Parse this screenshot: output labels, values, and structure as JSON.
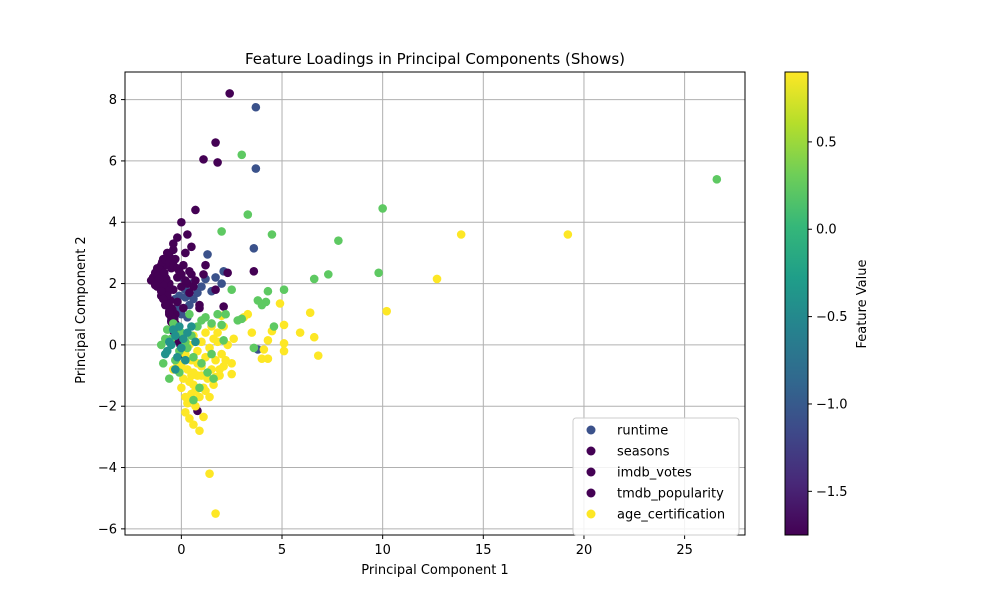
{
  "chart_data": {
    "type": "scatter",
    "title": "Feature Loadings in Principal Components (Shows)",
    "xlabel": "Principal Component 1",
    "ylabel": "Principal Component 2",
    "xlim": [
      -2.8,
      28
    ],
    "ylim": [
      -6.2,
      8.9
    ],
    "xticks": [
      0,
      5,
      10,
      15,
      20,
      25
    ],
    "yticks": [
      -6,
      -4,
      -2,
      0,
      2,
      4,
      6,
      8
    ],
    "grid": true,
    "legend_position": "lower-right",
    "colorbar": {
      "label": "Feature Value",
      "range": [
        -1.75,
        0.9
      ],
      "ticks": [
        -1.5,
        -1.0,
        -0.5,
        0.0,
        0.5
      ],
      "tick_labels": [
        "−1.5",
        "−1.0",
        "−0.5",
        "0.0",
        "0.5"
      ],
      "colormap": "viridis"
    },
    "colormap_stops": [
      "#440154",
      "#482878",
      "#3e4989",
      "#31688e",
      "#26828e",
      "#1f9e89",
      "#35b779",
      "#6ece58",
      "#b5de2b",
      "#fde725"
    ],
    "series": [
      {
        "name": "runtime",
        "legend_color": "#3b528b",
        "points": [
          [
            3.7,
            7.75
          ],
          [
            3.7,
            5.75
          ],
          [
            1.3,
            2.95
          ],
          [
            3.6,
            3.15
          ],
          [
            1.7,
            2.2
          ],
          [
            1.2,
            2.15
          ],
          [
            2.1,
            2.4
          ],
          [
            0.5,
            2.0
          ],
          [
            0.2,
            1.8
          ],
          [
            -0.1,
            1.6
          ],
          [
            -0.3,
            1.5
          ],
          [
            0.8,
            1.7
          ],
          [
            0.4,
            1.3
          ],
          [
            -0.2,
            1.2
          ],
          [
            0.0,
            1.0
          ],
          [
            0.3,
            0.9
          ],
          [
            -0.5,
            0.8
          ],
          [
            0.6,
            1.5
          ],
          [
            1.0,
            1.9
          ],
          [
            2.0,
            2.0
          ],
          [
            3.8,
            -0.15
          ],
          [
            0.0,
            2.2
          ],
          [
            -0.6,
            1.9
          ],
          [
            0.2,
            1.55
          ],
          [
            1.5,
            1.75
          ]
        ]
      },
      {
        "name": "seasons",
        "legend_color": "#440154",
        "points": [
          [
            2.4,
            8.2
          ],
          [
            1.7,
            6.6
          ],
          [
            1.8,
            5.95
          ],
          [
            1.1,
            6.05
          ],
          [
            0.7,
            4.4
          ],
          [
            0.0,
            4.0
          ],
          [
            0.3,
            3.6
          ],
          [
            -0.2,
            3.5
          ],
          [
            0.5,
            3.2
          ],
          [
            1.2,
            2.6
          ],
          [
            3.6,
            2.4
          ],
          [
            2.3,
            2.35
          ],
          [
            0.5,
            2.3
          ],
          [
            1.7,
            1.8
          ],
          [
            2.1,
            1.25
          ],
          [
            0.8,
            -2.15
          ],
          [
            -0.4,
            3.3
          ],
          [
            -0.7,
            3.0
          ],
          [
            0.2,
            3.0
          ],
          [
            -0.9,
            2.8
          ],
          [
            -1.0,
            2.6
          ],
          [
            -1.2,
            2.5
          ],
          [
            -1.3,
            2.35
          ],
          [
            -1.4,
            2.2
          ],
          [
            -1.5,
            2.1
          ],
          [
            -1.1,
            2.0
          ],
          [
            -0.8,
            2.2
          ],
          [
            -0.5,
            2.5
          ],
          [
            -0.3,
            2.8
          ],
          [
            0.1,
            2.6
          ],
          [
            0.4,
            2.4
          ],
          [
            -0.6,
            2.0
          ],
          [
            -0.9,
            1.8
          ],
          [
            -1.0,
            1.6
          ],
          [
            -0.7,
            1.5
          ],
          [
            -0.4,
            1.8
          ],
          [
            0.0,
            1.9
          ],
          [
            -0.2,
            2.2
          ],
          [
            -1.2,
            1.9
          ],
          [
            -1.3,
            2.0
          ],
          [
            -0.8,
            2.6
          ],
          [
            -0.6,
            2.9
          ],
          [
            -0.4,
            3.1
          ],
          [
            -1.0,
            2.3
          ],
          [
            -0.2,
            1.4
          ],
          [
            -0.5,
            1.2
          ],
          [
            -0.7,
            1.3
          ],
          [
            -0.3,
            1.0
          ],
          [
            -0.4,
            0.6
          ],
          [
            -0.2,
            0.4
          ],
          [
            -0.6,
            1.0
          ],
          [
            0.3,
            2.0
          ],
          [
            -0.1,
            2.4
          ],
          [
            0.6,
            1.9
          ],
          [
            0.9,
            1.3
          ],
          [
            0.1,
            1.2
          ]
        ]
      },
      {
        "name": "imdb_votes",
        "legend_color": "#440154",
        "points": [
          [
            -0.95,
            2.7
          ],
          [
            -1.05,
            2.45
          ],
          [
            -1.15,
            2.25
          ],
          [
            -1.25,
            2.05
          ],
          [
            -0.85,
            2.35
          ],
          [
            -0.75,
            2.15
          ],
          [
            -0.65,
            1.75
          ],
          [
            -0.55,
            1.45
          ],
          [
            -0.45,
            1.15
          ],
          [
            -0.35,
            0.85
          ],
          [
            -0.25,
            0.55
          ],
          [
            -0.15,
            0.25
          ],
          [
            -0.05,
            0.0
          ],
          [
            0.05,
            -0.3
          ],
          [
            -0.5,
            0.9
          ],
          [
            -0.6,
            1.1
          ],
          [
            -0.7,
            1.6
          ],
          [
            -0.3,
            0.7
          ],
          [
            -0.2,
            0.3
          ],
          [
            -0.1,
            0.1
          ],
          [
            -0.9,
            1.95
          ],
          [
            -1.0,
            1.75
          ]
        ]
      },
      {
        "name": "tmdb_popularity",
        "legend_color": "#440154",
        "points": [
          [
            -0.8,
            2.8
          ],
          [
            -0.6,
            2.7
          ],
          [
            -0.4,
            2.6
          ],
          [
            -0.2,
            2.5
          ],
          [
            0.0,
            2.3
          ],
          [
            0.2,
            2.1
          ],
          [
            -1.1,
            2.15
          ],
          [
            -1.3,
            1.95
          ],
          [
            -0.9,
            1.5
          ],
          [
            -0.8,
            1.3
          ],
          [
            -0.6,
            1.05
          ],
          [
            -0.5,
            0.75
          ],
          [
            -0.4,
            0.45
          ],
          [
            -0.3,
            0.15
          ],
          [
            0.4,
            1.7
          ],
          [
            0.7,
            2.1
          ],
          [
            0.9,
            1.2
          ],
          [
            1.1,
            2.3
          ]
        ]
      },
      {
        "name": "age_certification",
        "legend_color": "#fde725",
        "points": [
          [
            13.9,
            3.6
          ],
          [
            19.2,
            3.6
          ],
          [
            12.7,
            2.15
          ],
          [
            10.2,
            1.1
          ],
          [
            6.4,
            1.05
          ],
          [
            6.6,
            0.25
          ],
          [
            6.8,
            -0.35
          ],
          [
            5.9,
            0.4
          ],
          [
            4.9,
            1.35
          ],
          [
            5.1,
            0.65
          ],
          [
            5.1,
            0.05
          ],
          [
            5.1,
            -0.2
          ],
          [
            4.5,
            0.45
          ],
          [
            4.3,
            0.15
          ],
          [
            4.1,
            -0.15
          ],
          [
            4.3,
            -0.45
          ],
          [
            4.0,
            -0.45
          ],
          [
            3.5,
            0.4
          ],
          [
            3.3,
            1.0
          ],
          [
            3.1,
            0.9
          ],
          [
            2.6,
            0.2
          ],
          [
            2.5,
            -0.6
          ],
          [
            2.5,
            -0.95
          ],
          [
            2.0,
            0.95
          ],
          [
            2.1,
            0.6
          ],
          [
            1.8,
            0.4
          ],
          [
            1.6,
            0.2
          ],
          [
            1.4,
            -0.1
          ],
          [
            1.2,
            -0.4
          ],
          [
            1.0,
            -0.7
          ],
          [
            0.8,
            -1.0
          ],
          [
            0.6,
            -1.3
          ],
          [
            0.5,
            -1.6
          ],
          [
            0.3,
            -1.9
          ],
          [
            0.2,
            -2.2
          ],
          [
            0.4,
            -2.4
          ],
          [
            0.6,
            -2.6
          ],
          [
            0.9,
            -2.8
          ],
          [
            1.1,
            -2.35
          ],
          [
            1.4,
            -1.7
          ],
          [
            1.6,
            -1.3
          ],
          [
            1.9,
            -1.0
          ],
          [
            2.1,
            -0.7
          ],
          [
            1.7,
            -0.5
          ],
          [
            1.5,
            -0.8
          ],
          [
            1.3,
            -1.1
          ],
          [
            1.1,
            -1.4
          ],
          [
            0.9,
            -1.7
          ],
          [
            0.7,
            -2.0
          ],
          [
            0.5,
            -0.5
          ],
          [
            0.3,
            -0.8
          ],
          [
            0.1,
            -1.1
          ],
          [
            0.0,
            -0.7
          ],
          [
            -0.2,
            -0.6
          ],
          [
            -0.4,
            -0.8
          ],
          [
            0.2,
            -0.3
          ],
          [
            0.4,
            0.0
          ],
          [
            0.6,
            0.3
          ],
          [
            0.8,
            -0.2
          ],
          [
            1.0,
            0.1
          ],
          [
            1.2,
            0.4
          ],
          [
            1.5,
            0.6
          ],
          [
            1.8,
            0.1
          ],
          [
            2.0,
            -0.3
          ],
          [
            2.3,
            0.0
          ],
          [
            2.2,
            -0.5
          ],
          [
            1.9,
            -0.8
          ],
          [
            1.7,
            -1.05
          ],
          [
            1.4,
            -4.2
          ],
          [
            1.7,
            -5.5
          ],
          [
            0.0,
            -1.4
          ],
          [
            0.2,
            -1.7
          ],
          [
            0.4,
            -1.2
          ],
          [
            0.6,
            -0.9
          ],
          [
            0.8,
            -0.6
          ],
          [
            1.0,
            -1.0
          ],
          [
            1.2,
            -1.5
          ],
          [
            0.7,
            -1.5
          ],
          [
            0.5,
            -1.0
          ]
        ]
      },
      {
        "name": "",
        "legend_color": "#5ec962",
        "points": [
          [
            26.6,
            5.4
          ],
          [
            3.0,
            6.2
          ],
          [
            3.3,
            4.25
          ],
          [
            10.0,
            4.45
          ],
          [
            7.8,
            3.4
          ],
          [
            4.5,
            3.6
          ],
          [
            2.0,
            3.7
          ],
          [
            3.8,
            1.45
          ],
          [
            4.0,
            1.3
          ],
          [
            4.2,
            1.4
          ],
          [
            4.3,
            1.75
          ],
          [
            5.1,
            1.8
          ],
          [
            6.6,
            2.15
          ],
          [
            7.3,
            2.3
          ],
          [
            9.8,
            2.35
          ],
          [
            2.5,
            1.8
          ],
          [
            2.2,
            1.0
          ],
          [
            2.8,
            0.8
          ],
          [
            3.0,
            0.85
          ],
          [
            2.0,
            0.65
          ],
          [
            1.5,
            0.7
          ],
          [
            1.2,
            0.9
          ],
          [
            0.8,
            0.6
          ],
          [
            0.5,
            0.3
          ],
          [
            0.2,
            0.1
          ],
          [
            -0.1,
            -0.2
          ],
          [
            -0.3,
            -0.5
          ],
          [
            -0.5,
            0.2
          ],
          [
            -0.7,
            0.5
          ],
          [
            -0.4,
            0.7
          ],
          [
            0.0,
            0.4
          ],
          [
            0.3,
            -0.1
          ],
          [
            0.6,
            -0.4
          ],
          [
            1.0,
            -0.6
          ],
          [
            1.3,
            -0.9
          ],
          [
            1.6,
            -1.1
          ],
          [
            1.0,
            0.8
          ],
          [
            1.8,
            1.0
          ],
          [
            -0.9,
            -0.6
          ],
          [
            -0.6,
            -1.1
          ],
          [
            -0.1,
            -0.9
          ],
          [
            0.9,
            -1.4
          ],
          [
            0.6,
            -1.8
          ],
          [
            1.5,
            -0.3
          ],
          [
            2.1,
            0.15
          ],
          [
            4.6,
            0.6
          ],
          [
            3.6,
            -0.1
          ],
          [
            -0.8,
            0.2
          ],
          [
            -1.0,
            0.0
          ],
          [
            0.4,
            1.0
          ]
        ]
      },
      {
        "name": "",
        "legend_color": "#21918c",
        "points": [
          [
            -0.3,
            0.3
          ],
          [
            -0.5,
            0.0
          ],
          [
            -0.7,
            -0.2
          ],
          [
            -0.2,
            -0.4
          ],
          [
            0.0,
            -0.1
          ],
          [
            0.2,
            -0.5
          ],
          [
            -0.4,
            0.5
          ],
          [
            -0.1,
            0.6
          ],
          [
            0.3,
            0.4
          ],
          [
            0.1,
            0.2
          ],
          [
            -0.6,
            0.1
          ],
          [
            -0.8,
            -0.3
          ],
          [
            -0.3,
            -0.8
          ],
          [
            0.5,
            0.6
          ],
          [
            0.7,
            0.1
          ]
        ]
      }
    ]
  }
}
